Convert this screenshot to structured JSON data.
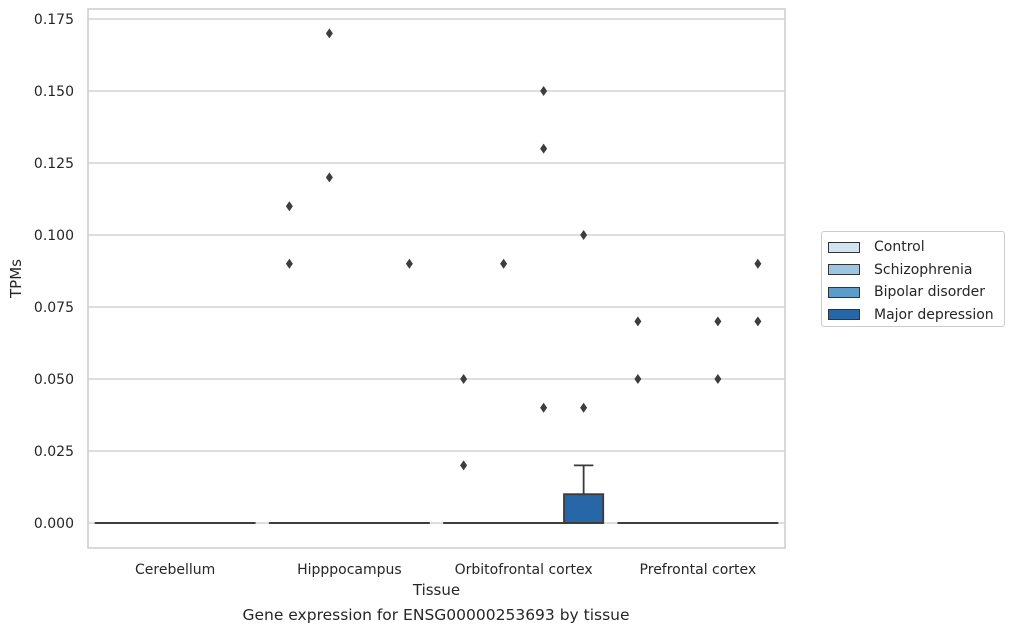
{
  "chart_data": {
    "type": "box",
    "title": "",
    "caption": "Gene expression for ENSG00000253693 by tissue",
    "xlabel": "Tissue",
    "ylabel": "TPMs",
    "ylim": [
      -0.0085,
      0.179
    ],
    "yticks": [
      "0.000",
      "0.025",
      "0.050",
      "0.075",
      "0.100",
      "0.125",
      "0.150",
      "0.175"
    ],
    "ytick_values": [
      0,
      0.025,
      0.05,
      0.075,
      0.1,
      0.125,
      0.15,
      0.175
    ],
    "grid": "horizontal",
    "legend_position": "right",
    "categories": [
      "Cerebellum",
      "Hipppocampus",
      "Orbitofrontal cortex",
      "Prefrontal cortex"
    ],
    "series": [
      {
        "name": "Control",
        "color": "#d4e3f2",
        "boxes": [
          {
            "q1": 0,
            "median": 0,
            "q3": 0,
            "whisker_low": 0,
            "whisker_high": 0,
            "outliers": []
          },
          {
            "q1": 0,
            "median": 0,
            "q3": 0,
            "whisker_low": 0,
            "whisker_high": 0,
            "outliers": [
              0.11,
              0.09
            ]
          },
          {
            "q1": 0,
            "median": 0,
            "q3": 0,
            "whisker_low": 0,
            "whisker_high": 0,
            "outliers": [
              0.05,
              0.02
            ]
          },
          {
            "q1": 0,
            "median": 0,
            "q3": 0,
            "whisker_low": 0,
            "whisker_high": 0,
            "outliers": [
              0.07,
              0.05
            ]
          }
        ]
      },
      {
        "name": "Schizophrenia",
        "color": "#9dc4e0",
        "boxes": [
          {
            "q1": 0,
            "median": 0,
            "q3": 0,
            "whisker_low": 0,
            "whisker_high": 0,
            "outliers": []
          },
          {
            "q1": 0,
            "median": 0,
            "q3": 0,
            "whisker_low": 0,
            "whisker_high": 0,
            "outliers": [
              0.17,
              0.12
            ]
          },
          {
            "q1": 0,
            "median": 0,
            "q3": 0,
            "whisker_low": 0,
            "whisker_high": 0,
            "outliers": [
              0.09
            ]
          },
          {
            "q1": 0,
            "median": 0,
            "q3": 0,
            "whisker_low": 0,
            "whisker_high": 0,
            "outliers": []
          }
        ]
      },
      {
        "name": "Bipolar disorder",
        "color": "#5b9cc9",
        "boxes": [
          {
            "q1": 0,
            "median": 0,
            "q3": 0,
            "whisker_low": 0,
            "whisker_high": 0,
            "outliers": []
          },
          {
            "q1": 0,
            "median": 0,
            "q3": 0,
            "whisker_low": 0,
            "whisker_high": 0,
            "outliers": []
          },
          {
            "q1": 0,
            "median": 0,
            "q3": 0,
            "whisker_low": 0,
            "whisker_high": 0,
            "outliers": [
              0.15,
              0.13,
              0.04
            ]
          },
          {
            "q1": 0,
            "median": 0,
            "q3": 0,
            "whisker_low": 0,
            "whisker_high": 0,
            "outliers": [
              0.07,
              0.05
            ]
          }
        ]
      },
      {
        "name": "Major depression",
        "color": "#2767a8",
        "boxes": [
          {
            "q1": 0,
            "median": 0,
            "q3": 0,
            "whisker_low": 0,
            "whisker_high": 0,
            "outliers": []
          },
          {
            "q1": 0,
            "median": 0,
            "q3": 0,
            "whisker_low": 0,
            "whisker_high": 0,
            "outliers": [
              0.09
            ]
          },
          {
            "q1": 0,
            "median": 0,
            "q3": 0.01,
            "whisker_low": 0,
            "whisker_high": 0.02,
            "outliers": [
              0.1,
              0.04
            ]
          },
          {
            "q1": 0,
            "median": 0,
            "q3": 0,
            "whisker_low": 0,
            "whisker_high": 0,
            "outliers": [
              0.09,
              0.07
            ]
          }
        ]
      }
    ]
  }
}
